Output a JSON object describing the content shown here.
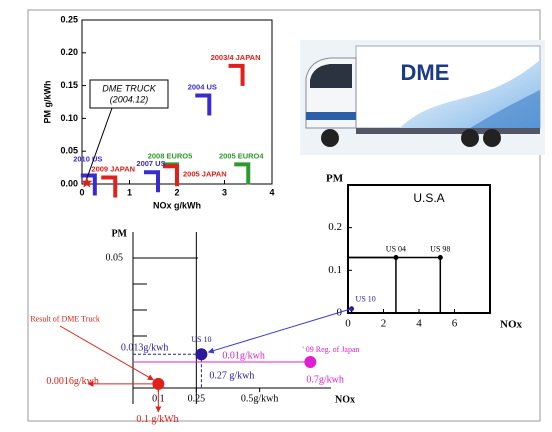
{
  "truck": {
    "label": "DME"
  },
  "chart_data": [
    {
      "type": "bracket",
      "xlabel": "NOx g/kWh",
      "ylabel": "PM g/kWh",
      "xlim": [
        0,
        4
      ],
      "ylim": [
        0,
        0.25
      ],
      "xticks": [
        0,
        1,
        2,
        3,
        4
      ],
      "yticks": [
        {
          "value": 0,
          "label": "0.00"
        },
        0.05,
        {
          "value": 0.1,
          "label": "0.10"
        },
        {
          "value": 0.15,
          "label": "0.15"
        },
        {
          "value": 0.2,
          "label": "0.20"
        },
        {
          "value": 0.25,
          "label": "0.25"
        }
      ],
      "series": [
        {
          "name": "2003/4 JAPAN",
          "color": "#e0201b",
          "x": [
            3.38
          ],
          "values": [
            0.18
          ]
        },
        {
          "name": "2004 US",
          "color": "#3a2bd0",
          "x": [
            2.68
          ],
          "values": [
            0.135
          ]
        },
        {
          "name": "2005 EURO4",
          "color": "#2e9a2e",
          "x": [
            3.5
          ],
          "values": [
            0.03
          ]
        },
        {
          "name": "2008 EURO5",
          "color": "#2e9a2e",
          "x": [
            2.0
          ],
          "values": [
            0.03
          ]
        },
        {
          "name": "2005 JAPAN",
          "color": "#e0201b",
          "x": [
            2.0
          ],
          "values": [
            0.027
          ]
        },
        {
          "name": "2007 US",
          "color": "#3a2bd0",
          "x": [
            1.6
          ],
          "values": [
            0.018
          ]
        },
        {
          "name": "2009 JAPAN",
          "color": "#e0201b",
          "x": [
            0.7
          ],
          "values": [
            0.01
          ]
        },
        {
          "name": "2010 US",
          "color": "#3a2bd0",
          "x": [
            0.27
          ],
          "values": [
            0.013
          ]
        },
        {
          "name": "DME TRUCK",
          "note": "(2004.12)",
          "color": "#e0201b",
          "x": [
            0.1
          ],
          "values": [
            0.002
          ],
          "marker": "star"
        }
      ]
    },
    {
      "type": "step",
      "title": "U.S.A",
      "xlabel": "NOx",
      "ylabel": "PM",
      "xlim": [
        0,
        8
      ],
      "ylim": [
        0,
        0.3
      ],
      "xticks": [
        0,
        2,
        4,
        6
      ],
      "yticks": [
        0,
        0.1,
        0.2
      ],
      "series": [
        {
          "name": "US 98",
          "color": "#000000",
          "x": [
            5.2
          ],
          "values": [
            0.13
          ]
        },
        {
          "name": "US 04",
          "color": "#000000",
          "x": [
            2.7
          ],
          "values": [
            0.13
          ]
        },
        {
          "name": "US 10",
          "color": "#2a1a9b",
          "x": [
            0.2
          ],
          "values": [
            0.01
          ]
        }
      ]
    },
    {
      "type": "scatter",
      "xlabel": "NOx",
      "ylabel": "PM",
      "xlim": [
        0,
        0.75
      ],
      "ylim": [
        0,
        0.06
      ],
      "xticks": [
        0.1,
        0.25,
        {
          "value": 0.5,
          "label": "0.5g/kwh"
        }
      ],
      "yticks": [
        0.05
      ],
      "vline": 0.25,
      "series": [
        {
          "name": "Result of DME Truck",
          "color": "#e0201b",
          "x": [
            0.1
          ],
          "values": [
            0.0016
          ],
          "x_labels": [
            "0.1 g/kWh"
          ],
          "value_labels": [
            "0.0016g/kwh"
          ]
        },
        {
          "name": "US 10",
          "color": "#2a1a9b",
          "x": [
            0.27
          ],
          "values": [
            0.013
          ],
          "x_labels": [
            "0.27 g/kwh"
          ],
          "value_labels": [
            "0.013g/kwh"
          ]
        },
        {
          "name": "' 09 Reg. of Japan",
          "color": "#e020d0",
          "x": [
            0.7
          ],
          "values": [
            0.01
          ],
          "x_labels": [
            "0.7g/kwh"
          ],
          "value_labels": [
            "0.01g/kwh"
          ]
        }
      ]
    }
  ]
}
